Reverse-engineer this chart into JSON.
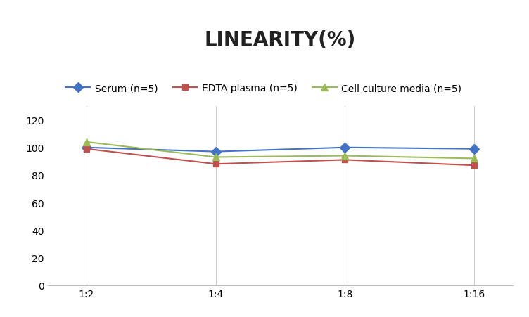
{
  "title": "LINEARITY(%)",
  "x_labels": [
    "1:2",
    "1:4",
    "1:8",
    "1:16"
  ],
  "x_positions": [
    0,
    1,
    2,
    3
  ],
  "series": [
    {
      "label": "Serum (n=5)",
      "values": [
        100,
        97,
        100,
        99
      ],
      "color": "#4472C4",
      "marker": "D",
      "markersize": 7,
      "linewidth": 1.5
    },
    {
      "label": "EDTA plasma (n=5)",
      "values": [
        99,
        88,
        91,
        87
      ],
      "color": "#C0504D",
      "marker": "s",
      "markersize": 6,
      "linewidth": 1.5
    },
    {
      "label": "Cell culture media (n=5)",
      "values": [
        104,
        93,
        94,
        92
      ],
      "color": "#9BBB59",
      "marker": "^",
      "markersize": 7,
      "linewidth": 1.5
    }
  ],
  "ylim": [
    0,
    130
  ],
  "yticks": [
    0,
    20,
    40,
    60,
    80,
    100,
    120
  ],
  "background_color": "#ffffff",
  "title_fontsize": 20,
  "title_fontweight": "bold",
  "legend_fontsize": 10,
  "tick_fontsize": 10,
  "grid_color": "#d0d0d0",
  "grid_linewidth": 0.8,
  "spine_color": "#c0c0c0"
}
